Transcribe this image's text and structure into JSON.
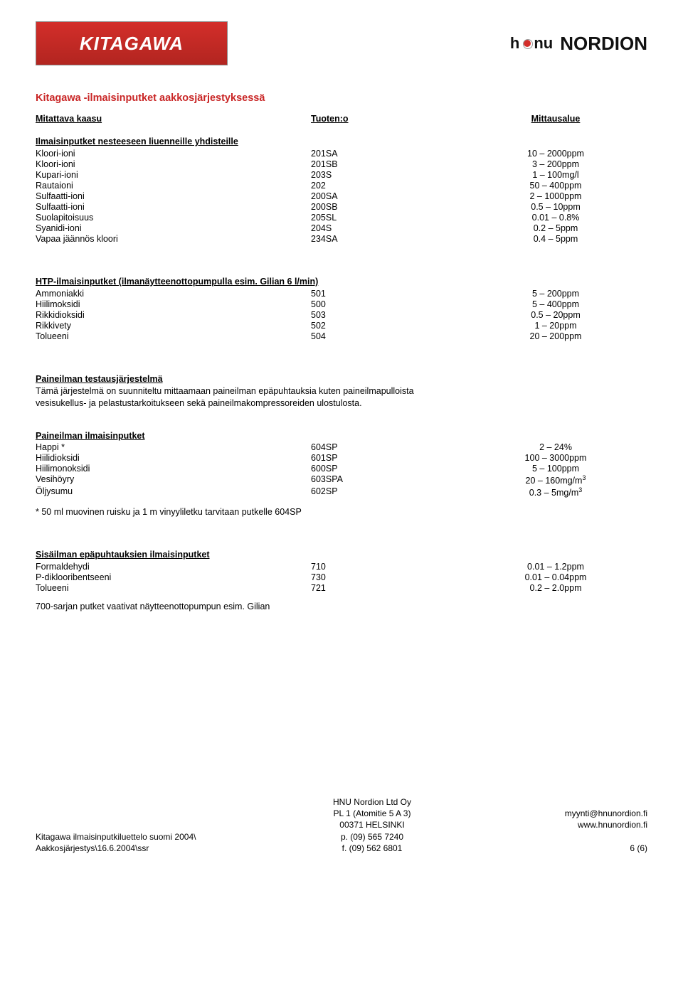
{
  "logos": {
    "kitagawa_text": "KITAGAWA",
    "nordion_prefix": "h",
    "nordion_nu": "nu",
    "nordion_main": "NORDION"
  },
  "page_title": "Kitagawa -ilmaisinputket aakkosjärjestyksessä",
  "columns": {
    "c1": "Mitattava kaasu",
    "c2": "Tuoten:o",
    "c3": "Mittausalue"
  },
  "section1": {
    "label": "Ilmaisinputket nesteeseen liuenneille yhdisteille",
    "rows": [
      {
        "n": "Kloori-ioni",
        "p": "201SA",
        "r": "10 – 2000ppm"
      },
      {
        "n": "Kloori-ioni",
        "p": "201SB",
        "r": "3 – 200ppm"
      },
      {
        "n": "Kupari-ioni",
        "p": "203S",
        "r": "1 – 100mg/l"
      },
      {
        "n": "Rautaioni",
        "p": "202",
        "r": "50 – 400ppm"
      },
      {
        "n": "Sulfaatti-ioni",
        "p": "200SA",
        "r": "2 – 1000ppm"
      },
      {
        "n": "Sulfaatti-ioni",
        "p": "200SB",
        "r": "0.5 – 10ppm"
      },
      {
        "n": "Suolapitoisuus",
        "p": "205SL",
        "r": "0.01 – 0.8%"
      },
      {
        "n": "Syanidi-ioni",
        "p": "204S",
        "r": "0.2 – 5ppm"
      },
      {
        "n": "Vapaa jäännös kloori",
        "p": "234SA",
        "r": "0.4 – 5ppm"
      }
    ]
  },
  "section2": {
    "label": "HTP-ilmaisinputket (ilmanäytteenottopumpulla esim. Gilian 6 l/min)",
    "rows": [
      {
        "n": "Ammoniakki",
        "p": "501",
        "r": "5 – 200ppm"
      },
      {
        "n": "Hiilimoksidi",
        "p": "500",
        "r": "5 – 400ppm"
      },
      {
        "n": "Rikkidioksidi",
        "p": "503",
        "r": "0.5 – 20ppm"
      },
      {
        "n": "Rikkivety",
        "p": "502",
        "r": "1 – 20ppm"
      },
      {
        "n": "Tolueeni",
        "p": "504",
        "r": "20 – 200ppm"
      }
    ]
  },
  "section3": {
    "label": "Paineilman testausjärjestelmä",
    "body": "Tämä järjestelmä on suunniteltu mittaamaan paineilman epäpuhtauksia kuten paineilmapulloista vesisukellus- ja pelastustarkoitukseen sekä paineilmakompressoreiden ulostulosta."
  },
  "section4": {
    "label": "Paineilman ilmaisinputket",
    "rows": [
      {
        "n": "Happi *",
        "p": "604SP",
        "r": "2 – 24%"
      },
      {
        "n": "Hiilidioksidi",
        "p": "601SP",
        "r": "100 – 3000ppm"
      },
      {
        "n": "Hiilimonoksidi",
        "p": "600SP",
        "r": "5 – 100ppm"
      },
      {
        "n": "Vesihöyry",
        "p": "603SPA",
        "r": "20 – 160mg/m³"
      },
      {
        "n": "Öljysumu",
        "p": "602SP",
        "r": "0.3 – 5mg/m³"
      }
    ],
    "note": "* 50 ml muovinen ruisku  ja 1 m vinyyliletku tarvitaan putkelle 604SP"
  },
  "section5": {
    "label": "Sisäilman epäpuhtauksien ilmaisinputket",
    "rows": [
      {
        "n": "Formaldehydi",
        "p": "710",
        "r": "0.01 – 1.2ppm"
      },
      {
        "n": "P-diklooribentseeni",
        "p": "730",
        "r": "0.01 – 0.04ppm"
      },
      {
        "n": "Tolueeni",
        "p": "721",
        "r": "0.2 – 2.0ppm"
      }
    ],
    "note": "700-sarjan putket vaativat näytteenottopumpun esim. Gilian"
  },
  "footer": {
    "left": [
      "Kitagawa ilmaisinputkiluettelo suomi 2004\\",
      "Aakkosjärjestys\\16.6.2004\\ssr"
    ],
    "mid": [
      "HNU Nordion Ltd Oy",
      "PL 1 (Atomitie 5 A 3)",
      "00371 HELSINKI",
      "p. (09) 565 7240",
      "f. (09) 562 6801"
    ],
    "right": [
      "myynti@hnunordion.fi",
      "www.hnunordion.fi",
      "",
      "",
      "6 (6)"
    ]
  }
}
